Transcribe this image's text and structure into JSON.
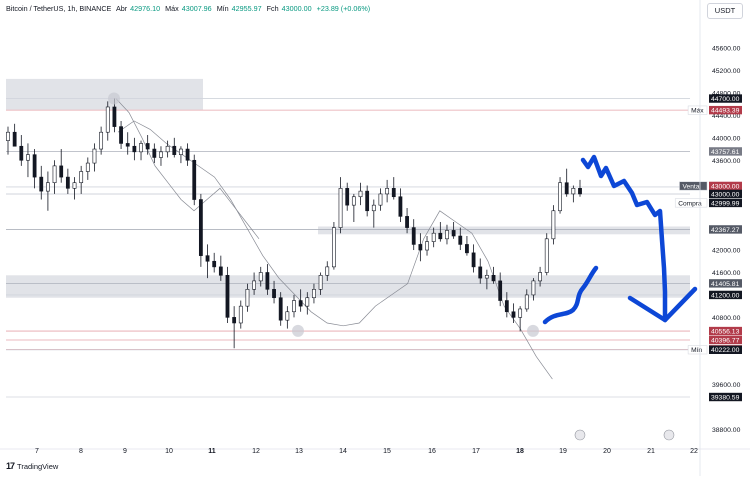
{
  "header": {
    "symbol": "Bitcoin / TetherUS, 1h, BINANCE",
    "open_label": "Abr",
    "open": "42976.10",
    "high_label": "Máx",
    "high": "43007.96",
    "low_label": "Mín",
    "low": "42955.97",
    "close_label": "Fch",
    "close": "43000.00",
    "change": "+23.89 (+0.06%)"
  },
  "currency_button": "USDT",
  "branding": "TradingView",
  "colors": {
    "up": "#089981",
    "down": "#f23645",
    "drawing": "#0d47d6",
    "zone": "#c9ccd6"
  },
  "chart_data": {
    "type": "candlestick",
    "title": "Bitcoin / TetherUS, 1h, BINANCE",
    "x_tick_labels": [
      "7",
      "8",
      "9",
      "10",
      "11",
      "12",
      "13",
      "14",
      "15",
      "16",
      "17",
      "18",
      "19",
      "20",
      "21",
      "22"
    ],
    "y_tick_labels": [
      "45600.00",
      "45200.00",
      "44800.00",
      "44400.00",
      "44000.00",
      "43600.00",
      "42000.00",
      "41600.00",
      "40800.00",
      "40400.00",
      "39600.00",
      "38800.00"
    ],
    "ylim": [
      38650,
      46100
    ],
    "price_levels": [
      {
        "label": "Máx",
        "value": 44493.39,
        "text": "44493.39",
        "color": "#b23b4a"
      },
      {
        "label": "",
        "value": 44700.0,
        "text": "44700.00",
        "color": "#131722"
      },
      {
        "label": "",
        "value": 43757.61,
        "text": "43757.61",
        "color": "#787b86"
      },
      {
        "label": "",
        "value": 43125.1,
        "text": "43125.10",
        "color": "#131722"
      },
      {
        "label": "Venta",
        "value": 43000.0,
        "text": "43000.00",
        "color": "#b23b4a"
      },
      {
        "label": "",
        "value": 43000.0,
        "text": "43000.00",
        "color": "#131722"
      },
      {
        "label": "Compra",
        "value": 42999.99,
        "text": "42999.99",
        "color": "#131722"
      },
      {
        "label": "",
        "value": 42367.27,
        "text": "42367.27",
        "color": "#555a66"
      },
      {
        "label": "",
        "value": 41405.81,
        "text": "41405.81",
        "color": "#555a66"
      },
      {
        "label": "",
        "value": 41200.0,
        "text": "41200.00",
        "color": "#131722"
      },
      {
        "label": "",
        "value": 40556.13,
        "text": "40556.13",
        "color": "#b23b4a"
      },
      {
        "label": "",
        "value": 40396.77,
        "text": "40396.77",
        "color": "#b23b4a"
      },
      {
        "label": "",
        "value": 40229.63,
        "text": "40229.63",
        "color": "#b23b4a"
      },
      {
        "label": "Mín",
        "value": 40222.0,
        "text": "40222.00",
        "color": "#131722"
      },
      {
        "label": "",
        "value": 39380.59,
        "text": "39380.59",
        "color": "#131722"
      }
    ],
    "zones": [
      {
        "from": 44500,
        "to": 45050
      },
      {
        "from": 42280,
        "to": 42420
      },
      {
        "from": 41150,
        "to": 41550
      }
    ],
    "candles": [
      [
        43950,
        44200,
        43700,
        44100
      ],
      [
        44100,
        44250,
        43900,
        43850
      ],
      [
        43850,
        44050,
        43500,
        43600
      ],
      [
        43600,
        43900,
        43300,
        43700
      ],
      [
        43700,
        43800,
        43100,
        43300
      ],
      [
        43300,
        43500,
        42900,
        43050
      ],
      [
        43050,
        43400,
        42700,
        43200
      ],
      [
        43200,
        43600,
        43000,
        43500
      ],
      [
        43500,
        43800,
        43200,
        43300
      ],
      [
        43300,
        43450,
        43000,
        43100
      ],
      [
        43100,
        43300,
        42900,
        43200
      ],
      [
        43200,
        43500,
        43000,
        43400
      ],
      [
        43400,
        43650,
        43250,
        43550
      ],
      [
        43550,
        43900,
        43400,
        43800
      ],
      [
        43800,
        44200,
        43700,
        44100
      ],
      [
        44100,
        44650,
        43950,
        44550
      ],
      [
        44550,
        44700,
        44100,
        44200
      ],
      [
        44200,
        44300,
        43800,
        43900
      ],
      [
        43900,
        44100,
        43700,
        43850
      ],
      [
        43850,
        44000,
        43600,
        43750
      ],
      [
        43750,
        43950,
        43600,
        43900
      ],
      [
        43900,
        44050,
        43700,
        43800
      ],
      [
        43800,
        43900,
        43550,
        43650
      ],
      [
        43650,
        43850,
        43500,
        43750
      ],
      [
        43750,
        43950,
        43650,
        43850
      ],
      [
        43850,
        44000,
        43650,
        43700
      ],
      [
        43700,
        43850,
        43550,
        43800
      ],
      [
        43800,
        43900,
        43500,
        43600
      ],
      [
        43600,
        43700,
        42800,
        42900
      ],
      [
        42900,
        43000,
        41700,
        41900
      ],
      [
        41900,
        42100,
        41500,
        41800
      ],
      [
        41800,
        41950,
        41600,
        41700
      ],
      [
        41700,
        41900,
        41450,
        41550
      ],
      [
        41550,
        41700,
        40700,
        40800
      ],
      [
        40800,
        41000,
        40250,
        40700
      ],
      [
        40700,
        41100,
        40600,
        41000
      ],
      [
        41000,
        41400,
        40900,
        41300
      ],
      [
        41300,
        41600,
        41200,
        41450
      ],
      [
        41450,
        41700,
        41350,
        41600
      ],
      [
        41600,
        41750,
        41200,
        41300
      ],
      [
        41300,
        41450,
        41050,
        41150
      ],
      [
        41150,
        41250,
        40650,
        40750
      ],
      [
        40750,
        41000,
        40600,
        40900
      ],
      [
        40900,
        41200,
        40800,
        41100
      ],
      [
        41100,
        41300,
        40900,
        41000
      ],
      [
        41000,
        41250,
        40850,
        41150
      ],
      [
        41150,
        41400,
        41050,
        41300
      ],
      [
        41300,
        41600,
        41200,
        41550
      ],
      [
        41550,
        41800,
        41450,
        41700
      ],
      [
        41700,
        42500,
        41650,
        42400
      ],
      [
        42400,
        43300,
        42300,
        43100
      ],
      [
        43100,
        43200,
        42700,
        42800
      ],
      [
        42800,
        43000,
        42500,
        42950
      ],
      [
        42950,
        43200,
        42800,
        43050
      ],
      [
        43050,
        43150,
        42600,
        42700
      ],
      [
        42700,
        42900,
        42400,
        42800
      ],
      [
        42800,
        43100,
        42700,
        43000
      ],
      [
        43000,
        43250,
        42850,
        43100
      ],
      [
        43100,
        43300,
        42900,
        42950
      ],
      [
        42950,
        43100,
        42500,
        42600
      ],
      [
        42600,
        42750,
        42300,
        42400
      ],
      [
        42400,
        42550,
        42000,
        42100
      ],
      [
        42100,
        42300,
        41800,
        42000
      ],
      [
        42000,
        42250,
        41900,
        42150
      ],
      [
        42150,
        42400,
        42050,
        42300
      ],
      [
        42300,
        42500,
        42150,
        42200
      ],
      [
        42200,
        42450,
        42100,
        42350
      ],
      [
        42350,
        42500,
        42200,
        42250
      ],
      [
        42250,
        42400,
        42000,
        42100
      ],
      [
        42100,
        42250,
        41900,
        41950
      ],
      [
        41950,
        42100,
        41600,
        41700
      ],
      [
        41700,
        41850,
        41400,
        41500
      ],
      [
        41500,
        41650,
        41300,
        41550
      ],
      [
        41550,
        41700,
        41400,
        41450
      ],
      [
        41450,
        41600,
        41000,
        41100
      ],
      [
        41100,
        41250,
        40800,
        40900
      ],
      [
        40900,
        41050,
        40700,
        40800
      ],
      [
        40800,
        41000,
        40550,
        40950
      ],
      [
        40950,
        41300,
        40900,
        41200
      ],
      [
        41200,
        41500,
        41100,
        41450
      ],
      [
        41450,
        41700,
        41350,
        41600
      ],
      [
        41600,
        42300,
        41550,
        42200
      ],
      [
        42200,
        42800,
        42100,
        42700
      ],
      [
        42700,
        43300,
        42650,
        43200
      ],
      [
        43200,
        43450,
        42950,
        43000
      ],
      [
        43000,
        43150,
        42850,
        43100
      ],
      [
        43100,
        43250,
        42950,
        43000
      ]
    ],
    "projection": [
      44700,
      44450,
      44000,
      43500,
      43200,
      42900,
      42700,
      42900,
      43100,
      42800,
      42500,
      42200
    ],
    "ma_line": [
      44100,
      44300,
      44150,
      43900,
      43700,
      43500,
      43300,
      42900,
      42400,
      41900,
      41500,
      41200,
      40900,
      40700,
      40650,
      40700,
      41000,
      41200,
      41400,
      42200,
      42700,
      42500,
      42300,
      41800,
      41000,
      40600,
      40100,
      39700
    ]
  }
}
